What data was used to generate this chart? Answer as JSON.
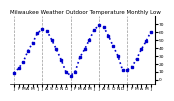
{
  "title": "Milwaukee Weather Outdoor Temperature Monthly Low",
  "values": [
    8,
    14,
    22,
    36,
    46,
    58,
    63,
    61,
    50,
    38,
    25,
    10,
    5,
    10,
    28,
    38,
    50,
    62,
    68,
    66,
    55,
    42,
    30,
    12,
    12,
    16,
    26,
    38,
    48,
    60
  ],
  "line_color": "#0000cc",
  "marker": "s",
  "marker_size": 1.8,
  "linestyle": "dotted",
  "linewidth": 1.2,
  "ylim": [
    -5,
    80
  ],
  "yticks": [
    0,
    10,
    20,
    30,
    40,
    50,
    60,
    70
  ],
  "grid_color": "#999999",
  "bg_color": "#ffffff",
  "title_fontsize": 4.0,
  "tick_fontsize": 3.2,
  "xtick_positions": [
    0,
    1,
    2,
    3,
    4,
    5,
    6,
    7,
    8,
    9,
    10,
    11,
    12,
    13,
    14,
    15,
    16,
    17,
    18,
    19,
    20,
    21,
    22,
    23,
    24,
    25,
    26,
    27,
    28,
    29
  ],
  "xtick_labels": [
    "J",
    "F",
    "M",
    "A",
    "M",
    "J",
    "J",
    "A",
    "S",
    "O",
    "N",
    "D",
    "J",
    "F",
    "M",
    "A",
    "M",
    "J",
    "J",
    "A",
    "S",
    "O",
    "N",
    "D",
    "J",
    "F",
    "M",
    "A",
    "M",
    "J"
  ],
  "vgrid_positions": [
    0,
    6,
    12,
    18,
    24
  ]
}
